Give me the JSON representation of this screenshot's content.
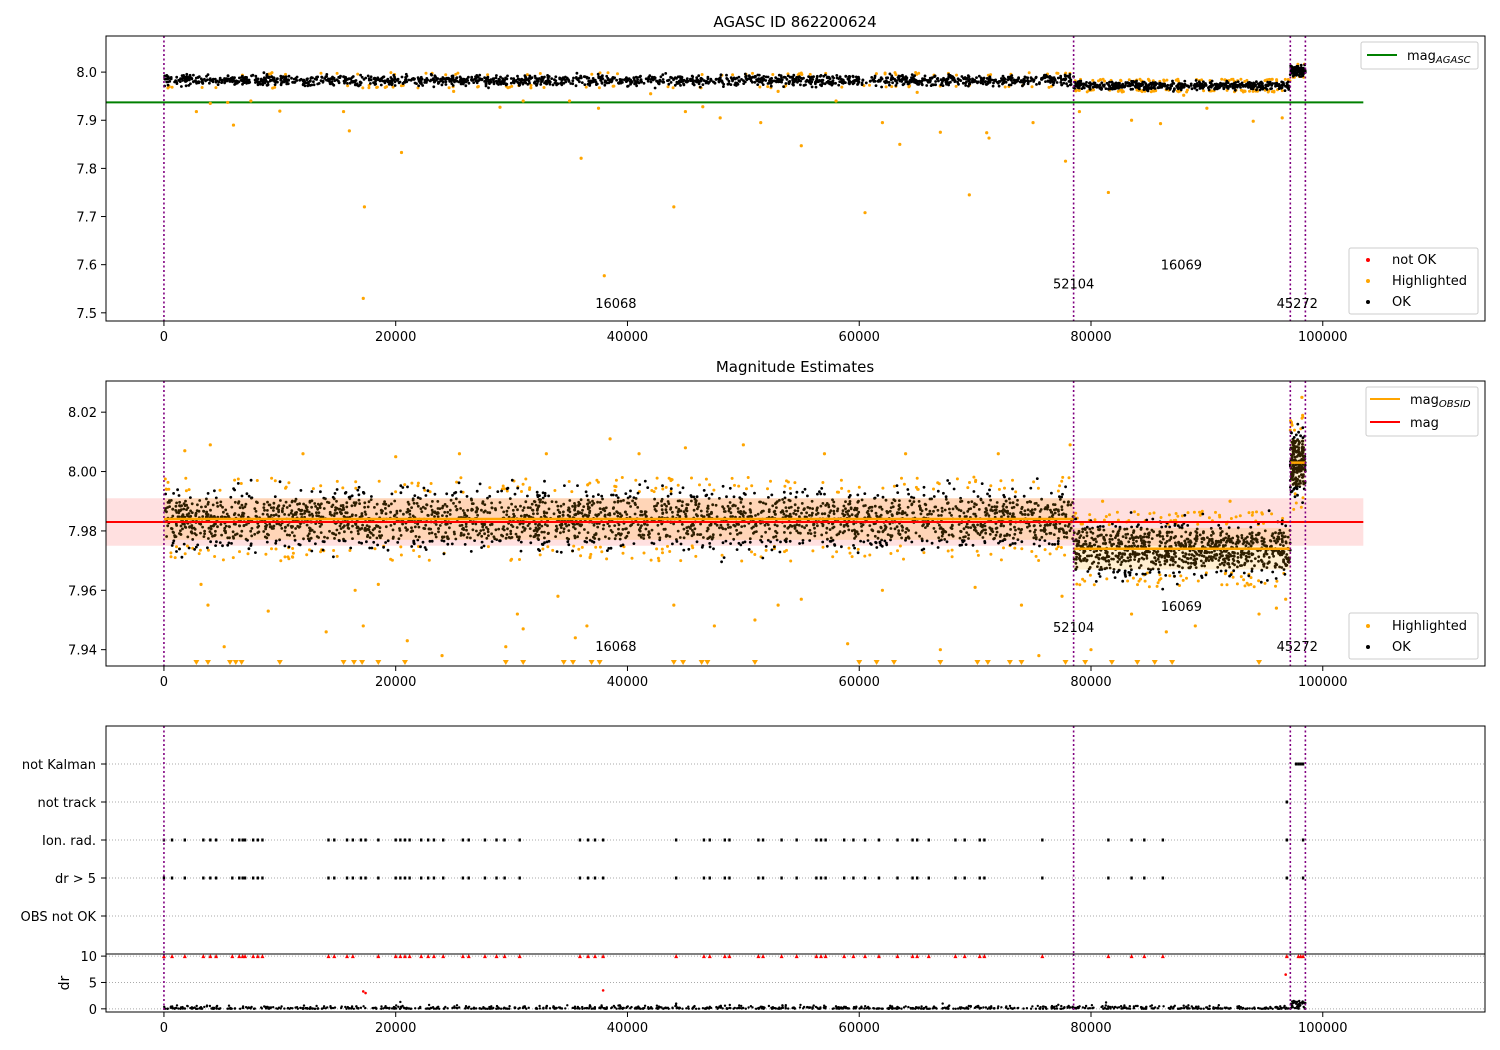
{
  "chart_data": [
    {
      "type": "scatter",
      "title": "AGASC ID 862200624",
      "xlabel": "",
      "ylabel": "",
      "xlim": [
        -5000,
        114000
      ],
      "ylim": [
        7.483,
        8.075
      ],
      "xticks": [
        0,
        20000,
        40000,
        60000,
        80000,
        100000
      ],
      "yticks": [
        7.5,
        7.6,
        7.7,
        7.8,
        7.9,
        8.0
      ],
      "ytick_labels": [
        "7.5",
        "7.6",
        "7.7",
        "7.8",
        "7.9",
        "8.0"
      ],
      "obs_boundaries": [
        0,
        78500,
        97200,
        98500
      ],
      "obsid_labels": [
        {
          "text": "16068",
          "x": 39000,
          "y": 7.51
        },
        {
          "text": "52104",
          "x": 78500,
          "y": 7.55
        },
        {
          "text": "16069",
          "x": 87800,
          "y": 7.59
        },
        {
          "text": "45272",
          "x": 97800,
          "y": 7.51
        }
      ],
      "reference_lines": [
        {
          "name": "mag_AGASC",
          "label_base": "mag",
          "label_sub": "AGASC",
          "y": 7.937,
          "x_range": [
            -5000,
            103500
          ],
          "color": "#008000"
        }
      ],
      "ok_segments": [
        {
          "x_range": [
            0,
            78500
          ],
          "y_center": 7.983,
          "y_spread": 0.012
        },
        {
          "x_range": [
            78500,
            97200
          ],
          "y_center": 7.972,
          "y_spread": 0.01
        },
        {
          "x_range": [
            97200,
            98500
          ],
          "y_center": 8.003,
          "y_spread": 0.012
        }
      ],
      "highlighted_points": [
        [
          2800,
          7.918
        ],
        [
          4000,
          7.935
        ],
        [
          5500,
          7.937
        ],
        [
          6000,
          7.89
        ],
        [
          7500,
          7.94
        ],
        [
          10000,
          7.919
        ],
        [
          15500,
          7.918
        ],
        [
          16000,
          7.878
        ],
        [
          17200,
          7.53
        ],
        [
          17300,
          7.72
        ],
        [
          20500,
          7.833
        ],
        [
          29000,
          7.927
        ],
        [
          31000,
          7.94
        ],
        [
          35000,
          7.94
        ],
        [
          36000,
          7.821
        ],
        [
          37500,
          7.925
        ],
        [
          38000,
          7.577
        ],
        [
          44000,
          7.72
        ],
        [
          45000,
          7.918
        ],
        [
          46500,
          7.928
        ],
        [
          48000,
          7.905
        ],
        [
          51500,
          7.895
        ],
        [
          55000,
          7.847
        ],
        [
          58000,
          7.94
        ],
        [
          60500,
          7.708
        ],
        [
          62000,
          7.895
        ],
        [
          63500,
          7.85
        ],
        [
          67000,
          7.875
        ],
        [
          69500,
          7.745
        ],
        [
          71000,
          7.874
        ],
        [
          71200,
          7.863
        ],
        [
          75000,
          7.895
        ],
        [
          77800,
          7.815
        ],
        [
          79000,
          7.918
        ],
        [
          81500,
          7.75
        ],
        [
          83500,
          7.9
        ],
        [
          86000,
          7.893
        ],
        [
          90000,
          7.925
        ],
        [
          94000,
          7.898
        ],
        [
          96500,
          7.905
        ],
        [
          25000,
          7.96
        ],
        [
          42000,
          7.955
        ],
        [
          53000,
          7.96
        ],
        [
          65000,
          7.958
        ],
        [
          88000,
          7.952
        ]
      ],
      "series": [
        {
          "name": "not OK",
          "color": "#ff0000"
        },
        {
          "name": "Highlighted",
          "color": "#ffa500"
        },
        {
          "name": "OK",
          "color": "#000000"
        }
      ],
      "legend_placement": "upper-right and lower-right"
    },
    {
      "type": "scatter",
      "title": "Magnitude Estimates",
      "xlabel": "",
      "ylabel": "",
      "xlim": [
        -5000,
        114000
      ],
      "ylim": [
        7.9345,
        8.0305
      ],
      "xticks": [
        0,
        20000,
        40000,
        60000,
        80000,
        100000
      ],
      "yticks": [
        7.94,
        7.96,
        7.98,
        8.0,
        8.02
      ],
      "ytick_labels": [
        "7.94",
        "7.96",
        "7.98",
        "8.00",
        "8.02"
      ],
      "obs_boundaries": [
        0,
        78500,
        97200,
        98500
      ],
      "obsid_labels": [
        {
          "text": "16068",
          "x": 39000,
          "y": 7.9395
        },
        {
          "text": "52104",
          "x": 78500,
          "y": 7.946
        },
        {
          "text": "16069",
          "x": 87800,
          "y": 7.953
        },
        {
          "text": "45272",
          "x": 97800,
          "y": 7.9395
        }
      ],
      "mag_line": {
        "name": "mag",
        "y": 7.983,
        "band": [
          7.975,
          7.991
        ],
        "x_range": [
          -5000,
          103500
        ],
        "color": "#ff0000"
      },
      "obsid_mags": [
        {
          "x_range": [
            0,
            78500
          ],
          "mag": 7.984,
          "band": [
            7.977,
            7.991
          ]
        },
        {
          "x_range": [
            78500,
            97200
          ],
          "mag": 7.974,
          "band": [
            7.967,
            7.981
          ]
        },
        {
          "x_range": [
            97200,
            98500
          ],
          "mag": 8.003,
          "band": [
            7.995,
            8.011
          ]
        }
      ],
      "ok_segments": [
        {
          "x_range": [
            0,
            78500
          ],
          "y_center": 7.984,
          "y_spread": 0.0105
        },
        {
          "x_range": [
            78500,
            97200
          ],
          "y_center": 7.974,
          "y_spread": 0.0095
        },
        {
          "x_range": [
            97200,
            98500
          ],
          "y_center": 8.003,
          "y_spread": 0.012
        }
      ],
      "highlighted_points": [
        [
          1800,
          8.007
        ],
        [
          3200,
          7.962
        ],
        [
          3800,
          7.955
        ],
        [
          4000,
          8.009
        ],
        [
          5200,
          7.941
        ],
        [
          9000,
          7.953
        ],
        [
          12000,
          8.006
        ],
        [
          14000,
          7.946
        ],
        [
          16500,
          7.96
        ],
        [
          17200,
          7.948
        ],
        [
          18500,
          7.962
        ],
        [
          20000,
          8.005
        ],
        [
          21000,
          7.943
        ],
        [
          24000,
          7.938
        ],
        [
          25500,
          8.006
        ],
        [
          29500,
          7.941
        ],
        [
          30500,
          7.952
        ],
        [
          31000,
          7.947
        ],
        [
          33000,
          8.006
        ],
        [
          34000,
          7.958
        ],
        [
          35500,
          7.944
        ],
        [
          36500,
          7.948
        ],
        [
          38500,
          8.011
        ],
        [
          41000,
          8.006
        ],
        [
          44000,
          7.955
        ],
        [
          45000,
          8.008
        ],
        [
          47500,
          7.948
        ],
        [
          50000,
          8.009
        ],
        [
          51000,
          7.95
        ],
        [
          53000,
          7.955
        ],
        [
          55000,
          7.957
        ],
        [
          57000,
          8.006
        ],
        [
          59000,
          7.942
        ],
        [
          62000,
          7.96
        ],
        [
          64000,
          8.006
        ],
        [
          67000,
          7.94
        ],
        [
          70000,
          7.961
        ],
        [
          72000,
          8.006
        ],
        [
          74000,
          7.955
        ],
        [
          75500,
          7.938
        ],
        [
          77500,
          7.958
        ],
        [
          78200,
          8.009
        ],
        [
          80000,
          7.94
        ],
        [
          81000,
          7.99
        ],
        [
          83500,
          7.952
        ],
        [
          86500,
          7.946
        ],
        [
          89000,
          7.948
        ],
        [
          92000,
          7.99
        ],
        [
          94500,
          7.952
        ],
        [
          96000,
          7.954
        ],
        [
          96800,
          7.957
        ],
        [
          98200,
          8.025
        ]
      ],
      "offscale_low_x": [
        2800,
        3800,
        5700,
        6200,
        6700,
        10000,
        15500,
        16400,
        17100,
        18500,
        20800,
        29500,
        31000,
        34500,
        35300,
        36900,
        37600,
        44000,
        44800,
        46400,
        46900,
        51000,
        60000,
        61500,
        63000,
        67000,
        70200,
        71100,
        73000,
        74000,
        77800,
        79500,
        81800,
        84000,
        85500,
        87000,
        94500
      ],
      "series": [
        {
          "name": "Highlighted",
          "color": "#ffa500"
        },
        {
          "name": "OK",
          "color": "#000000"
        },
        {
          "name": "mag_OBSID",
          "label_base": "mag",
          "label_sub": "OBSID",
          "color": "#ffa500"
        },
        {
          "name": "mag",
          "color": "#ff0000"
        }
      ],
      "legend_placement": "upper-right and lower-right"
    },
    {
      "type": "scatter",
      "title": "",
      "xlabel": "",
      "ylabel": "",
      "xlim": [
        -5000,
        114000
      ],
      "categories": [
        "not Kalman",
        "not track",
        "Ion. rad.",
        "dr > 5",
        "OBS not OK"
      ],
      "obs_boundaries": [
        0,
        78500,
        97200,
        98500
      ],
      "flag_points": {
        "not Kalman": [
          97700,
          97900,
          98100,
          98300
        ],
        "not track": [
          96900
        ],
        "Ion. rad.": [
          0,
          700,
          1800,
          3400,
          4000,
          4500,
          5900,
          6500,
          6800,
          7000,
          7700,
          8100,
          8500,
          14200,
          14700,
          15800,
          16300,
          17000,
          17400,
          18500,
          20000,
          20400,
          20800,
          21200,
          22200,
          22800,
          23300,
          24100,
          25800,
          26300,
          27700,
          28700,
          29400,
          30700,
          35900,
          36600,
          37200,
          37900,
          44200,
          46600,
          47100,
          48400,
          48800,
          51300,
          51700,
          53300,
          54600,
          56300,
          56700,
          57100,
          58700,
          59500,
          60500,
          61700,
          63300,
          64600,
          65000,
          66000,
          68300,
          69100,
          70400,
          70800,
          75800,
          81500,
          83500,
          84600,
          86200,
          96900,
          98300
        ],
        "dr > 5": [
          0,
          700,
          1800,
          3400,
          4000,
          4500,
          5900,
          6500,
          6800,
          7000,
          7700,
          8100,
          8500,
          14200,
          14700,
          15800,
          16300,
          17000,
          17400,
          18500,
          20000,
          20400,
          20800,
          21200,
          22200,
          22800,
          23300,
          24100,
          25800,
          26300,
          27700,
          28700,
          29400,
          30700,
          35900,
          36600,
          37200,
          37900,
          44200,
          46600,
          47100,
          48400,
          48800,
          51300,
          51700,
          53300,
          54600,
          56300,
          56700,
          57100,
          58700,
          59500,
          60500,
          61700,
          63300,
          64600,
          65000,
          66000,
          68300,
          69100,
          70400,
          70800,
          75800,
          81500,
          83500,
          84600,
          86200,
          96900,
          98300
        ],
        "OBS not OK": []
      }
    },
    {
      "type": "scatter",
      "title": "",
      "xlabel": "",
      "ylabel": "dr",
      "xlim": [
        -5000,
        114000
      ],
      "ylim": [
        -0.6,
        10.4
      ],
      "xticks": [
        0,
        20000,
        40000,
        60000,
        80000,
        100000
      ],
      "xtick_labels": [
        "0",
        "20000",
        "40000",
        "60000",
        "80000",
        "100000"
      ],
      "yticks": [
        0,
        5,
        10
      ],
      "ytick_labels": [
        "0",
        "5",
        "10"
      ],
      "obs_boundaries": [
        0,
        78500,
        97200,
        98500
      ],
      "baseline_range": [
        0,
        97200
      ],
      "baseline_dr": [
        0,
        0.8
      ],
      "dr_capped_red": [
        0,
        700,
        1800,
        3400,
        4000,
        4500,
        5900,
        6500,
        6800,
        7000,
        7700,
        8100,
        8500,
        14200,
        14700,
        15800,
        16300,
        18500,
        20000,
        20400,
        20800,
        21200,
        22200,
        22800,
        23300,
        24100,
        25800,
        26300,
        27700,
        28700,
        29400,
        30700,
        35900,
        36600,
        37200,
        37900,
        44200,
        46600,
        47100,
        48400,
        48800,
        51300,
        51700,
        53300,
        54600,
        56300,
        56700,
        57100,
        58700,
        59500,
        60500,
        61700,
        63300,
        64600,
        65000,
        66000,
        68300,
        69100,
        70400,
        70800,
        75800,
        81500,
        83500,
        84600,
        86200,
        96900,
        97900,
        98100,
        98300
      ],
      "dr_mid_red": [
        [
          17200,
          3.3
        ],
        [
          17400,
          3.0
        ],
        [
          37900,
          3.5
        ],
        [
          96800,
          6.5
        ]
      ],
      "dr_mid_black": [
        [
          20400,
          1.3
        ],
        [
          44200,
          1.0
        ],
        [
          67200,
          1.0
        ],
        [
          81300,
          1.2
        ],
        [
          97500,
          1.5
        ]
      ]
    }
  ]
}
